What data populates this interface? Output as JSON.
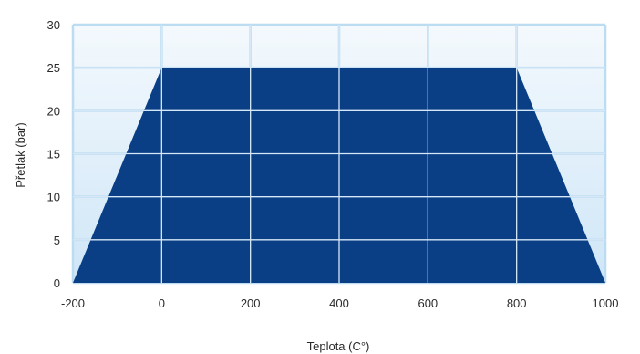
{
  "chart_data": {
    "type": "area",
    "title": "",
    "xlabel": "Teplota (C°)",
    "ylabel": "Přetlak (bar)",
    "xlim": [
      -200,
      1000
    ],
    "ylim": [
      0,
      30
    ],
    "xticks": [
      -200,
      0,
      200,
      400,
      600,
      800,
      1000
    ],
    "yticks": [
      0,
      5,
      10,
      15,
      20,
      25,
      30
    ],
    "grid": true,
    "series": [
      {
        "x": [
          -200,
          0,
          800,
          1000
        ],
        "y": [
          0,
          25,
          25,
          0
        ]
      }
    ],
    "colors": {
      "fill": "#0a3f86",
      "plot_bg_top": "#f4f9fd",
      "plot_bg_bottom": "#cfe6f7",
      "grid": "#bcdcf2",
      "grid_inner": "#d6e8f7"
    }
  }
}
